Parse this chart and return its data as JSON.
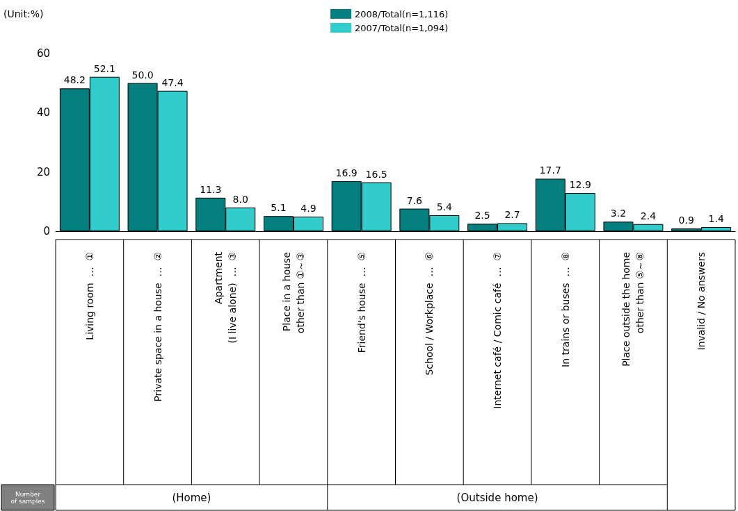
{
  "chart_data": {
    "type": "bar",
    "ylabel": "(Unit:%)",
    "categories": [
      "Living room  …  ①",
      "Private space in a house  …  ②",
      "Apartment\n(I live alone)  …  ③",
      "Place in a house\nother than ①～③",
      "Friend's house  …  ⑤",
      "School / Workplace  …  ⑥",
      "Internet café / Comic café  …  ⑦",
      "In trains or buses  …  ⑧",
      "Place outside the home\nother than ⑤～⑧",
      "Invalid / No answers"
    ],
    "series": [
      {
        "name": "2008/Total(n=1,116)",
        "color": "#037f7f",
        "values": [
          48.2,
          50.0,
          11.3,
          5.1,
          16.9,
          7.6,
          2.5,
          17.7,
          3.2,
          0.9
        ],
        "value_labels": [
          "48.2",
          "50.0",
          "11.3",
          "5.1",
          "16.9",
          "7.6",
          "2.5",
          "17.7",
          "3.2",
          "0.9"
        ]
      },
      {
        "name": "2007/Total(n=1,094)",
        "color": "#33cccc",
        "values": [
          52.1,
          47.4,
          8.0,
          4.9,
          16.5,
          5.4,
          2.7,
          12.9,
          2.4,
          1.4
        ],
        "value_labels": [
          "52.1",
          "47.4",
          "8.0",
          "4.9",
          "16.5",
          "5.4",
          "2.7",
          "12.9",
          "2.4",
          "1.4"
        ]
      }
    ],
    "ylim": [
      0,
      60
    ],
    "yticks": [
      0,
      20,
      40,
      60
    ],
    "grid": false,
    "legend": "top",
    "annotations": [
      "(Home)",
      "(Outside home)",
      "Number of samples"
    ]
  }
}
